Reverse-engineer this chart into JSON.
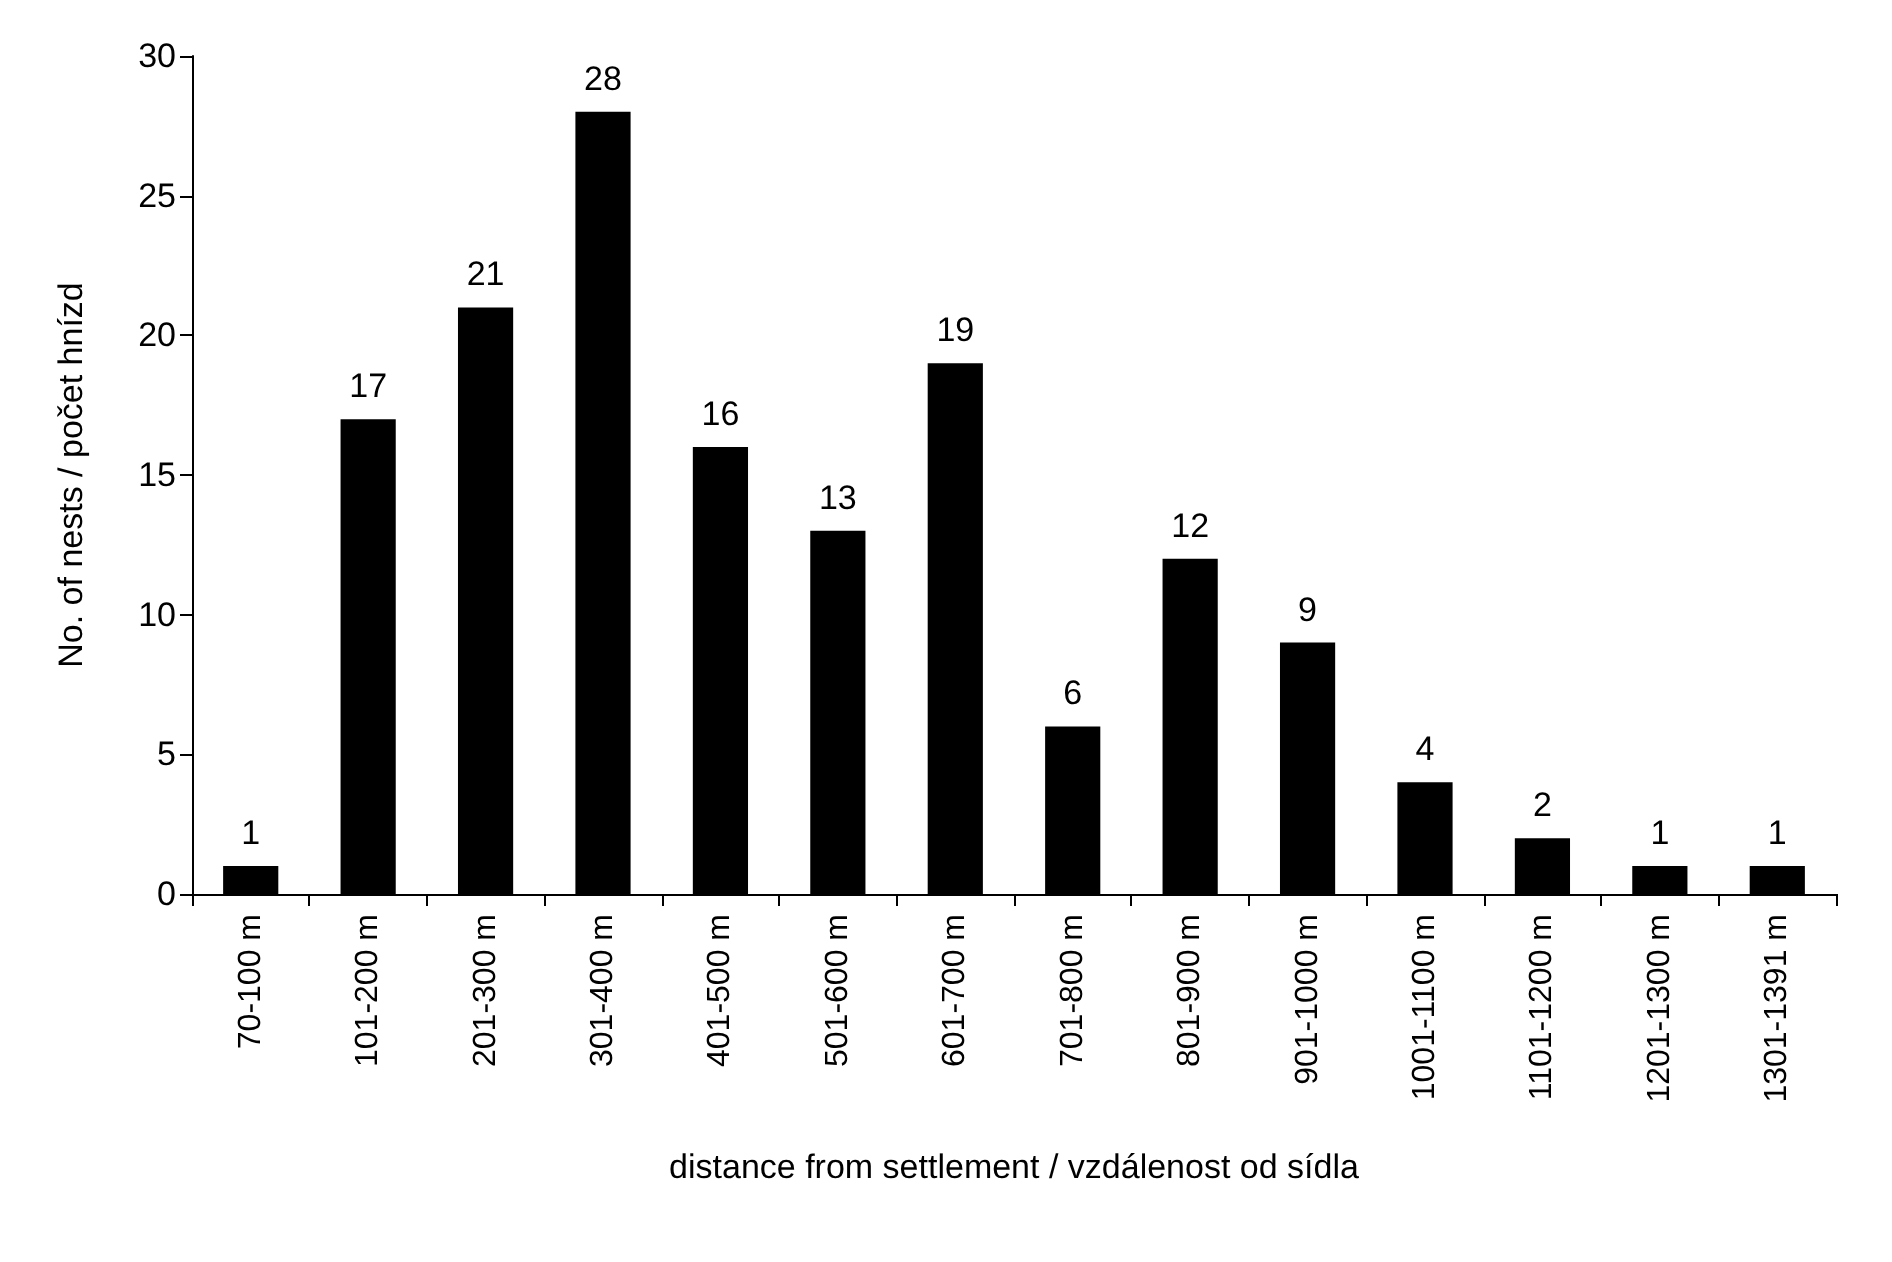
{
  "chart_data": {
    "type": "bar",
    "xlabel": "distance from settlement / vzdálenost od sídla",
    "ylabel": "No. of nests / počet hnízd",
    "categories": [
      "70-100 m",
      "101-200 m",
      "201-300 m",
      "301-400 m",
      "401-500 m",
      "501-600 m",
      "601-700 m",
      "701-800 m",
      "801-900 m",
      "901-1000 m",
      "1001-1100 m",
      "1101-1200 m",
      "1201-1300 m",
      "1301-1391 m"
    ],
    "values": [
      1,
      17,
      21,
      28,
      16,
      13,
      19,
      6,
      12,
      9,
      4,
      2,
      1,
      1
    ],
    "color": "#000000",
    "ylim": [
      0,
      30
    ],
    "yticks": [
      0,
      5,
      10,
      15,
      20,
      25,
      30
    ],
    "data_labels": true
  }
}
